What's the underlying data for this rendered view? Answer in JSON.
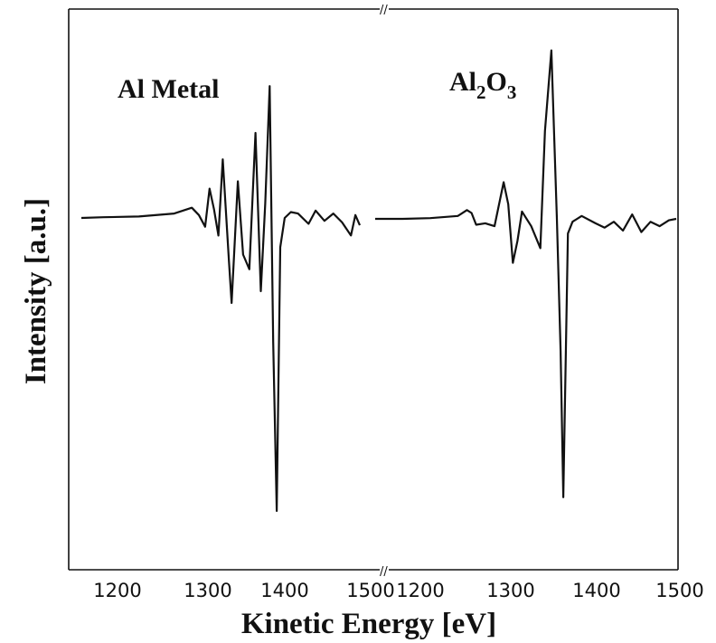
{
  "chart_data": {
    "type": "line",
    "xlabel": "Kinetic Energy [eV]",
    "ylabel": "Intensity [a.u.]",
    "panels": [
      {
        "label_main": "Al Metal",
        "label_sub": "",
        "label_tail": "",
        "xlim": [
          1170,
          1500
        ],
        "ticks": [
          1200,
          1300,
          1400,
          1500
        ],
        "tick_labels": [
          "1200",
          "1300",
          "1400",
          "1500"
        ],
        "series": [
          {
            "x": [
              1175,
              1200,
              1240,
              1280,
              1300,
              1308,
              1315,
              1320,
              1325,
              1330,
              1335,
              1342,
              1345,
              1352,
              1358,
              1365,
              1372,
              1378,
              1383,
              1388,
              1392,
              1396,
              1400,
              1405,
              1412,
              1420,
              1432,
              1440,
              1450,
              1460,
              1470,
              1480,
              1485,
              1490
            ],
            "y": [
              0,
              0.5,
              1,
              3,
              7,
              2,
              -6,
              20,
              6,
              -12,
              40,
              -30,
              -58,
              25,
              -25,
              -35,
              58,
              -50,
              10,
              90,
              -85,
              -200,
              -20,
              0,
              4,
              3,
              -4,
              5,
              -2,
              3,
              -3,
              -12,
              2,
              -5
            ]
          }
        ]
      },
      {
        "label_main": "Al",
        "label_sub": "2",
        "label_tail": "O3",
        "xlim": [
          1170,
          1500
        ],
        "ticks": [
          1200,
          1300,
          1400,
          1500
        ],
        "tick_labels": [
          "1200",
          "1300",
          "1400",
          "1500"
        ],
        "series": [
          {
            "x": [
              1170,
              1200,
              1230,
              1260,
              1270,
              1275,
              1280,
              1290,
              1300,
              1310,
              1315,
              1320,
              1325,
              1330,
              1340,
              1350,
              1355,
              1362,
              1368,
              1372,
              1375,
              1380,
              1385,
              1395,
              1410,
              1420,
              1430,
              1440,
              1450,
              1460,
              1470,
              1480,
              1490,
              1498
            ],
            "y": [
              0,
              0,
              0.5,
              2,
              6,
              4,
              -4,
              -3,
              -5,
              25,
              10,
              -30,
              -15,
              5,
              -5,
              -20,
              60,
              115,
              0,
              -90,
              -190,
              -10,
              -2,
              2,
              -3,
              -6,
              -2,
              -8,
              3,
              -9,
              -2,
              -5,
              -1,
              0
            ]
          }
        ]
      }
    ]
  }
}
